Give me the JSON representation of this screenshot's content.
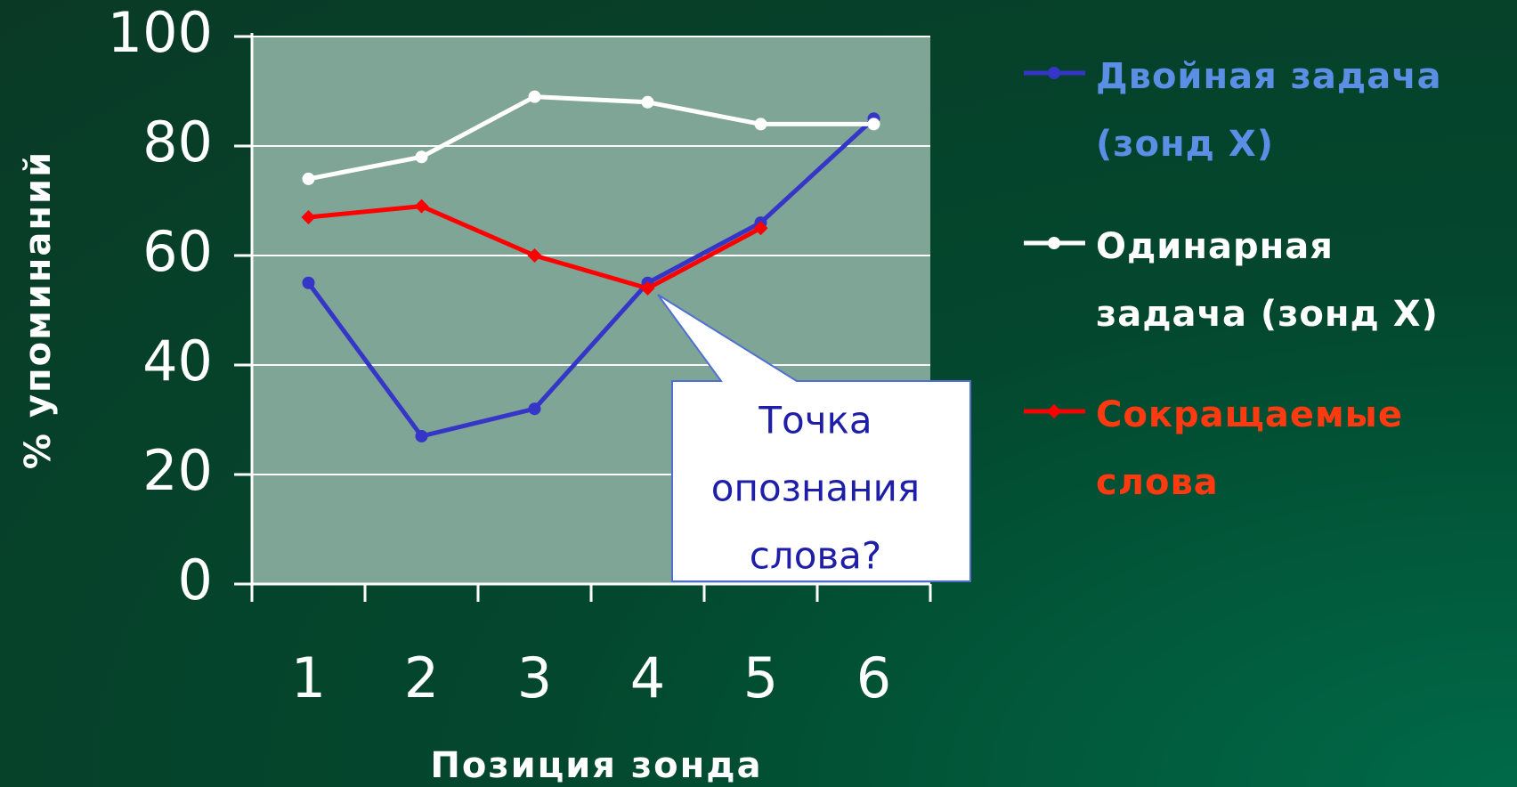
{
  "chart_data": {
    "type": "line",
    "categories": [
      "1",
      "2",
      "3",
      "4",
      "5",
      "6"
    ],
    "series": [
      {
        "name": "Двойная задача (зонд X)",
        "color": "#3535c8",
        "legend_color": "#5b8fe6",
        "marker": "circle",
        "values": [
          55,
          27,
          32,
          55,
          66,
          85
        ]
      },
      {
        "name": "Одинарная задача (зонд X)",
        "color": "#ffffff",
        "legend_color": "#ffffff",
        "marker": "circle",
        "values": [
          74,
          78,
          89,
          88,
          84,
          84
        ]
      },
      {
        "name": "Сокращаемые слова",
        "color": "#ff0000",
        "legend_color": "#ff3a10",
        "marker": "diamond",
        "values": [
          67,
          69,
          60,
          54,
          65,
          null
        ]
      }
    ],
    "ylim": [
      0,
      100
    ],
    "yticks": [
      0,
      20,
      40,
      60,
      80,
      100
    ],
    "grid": true,
    "xlabel": "Позиция зонда",
    "ylabel": "% упоминаний",
    "annotation": [
      "Точка",
      "опознания",
      "слова?"
    ],
    "legend": "right"
  }
}
